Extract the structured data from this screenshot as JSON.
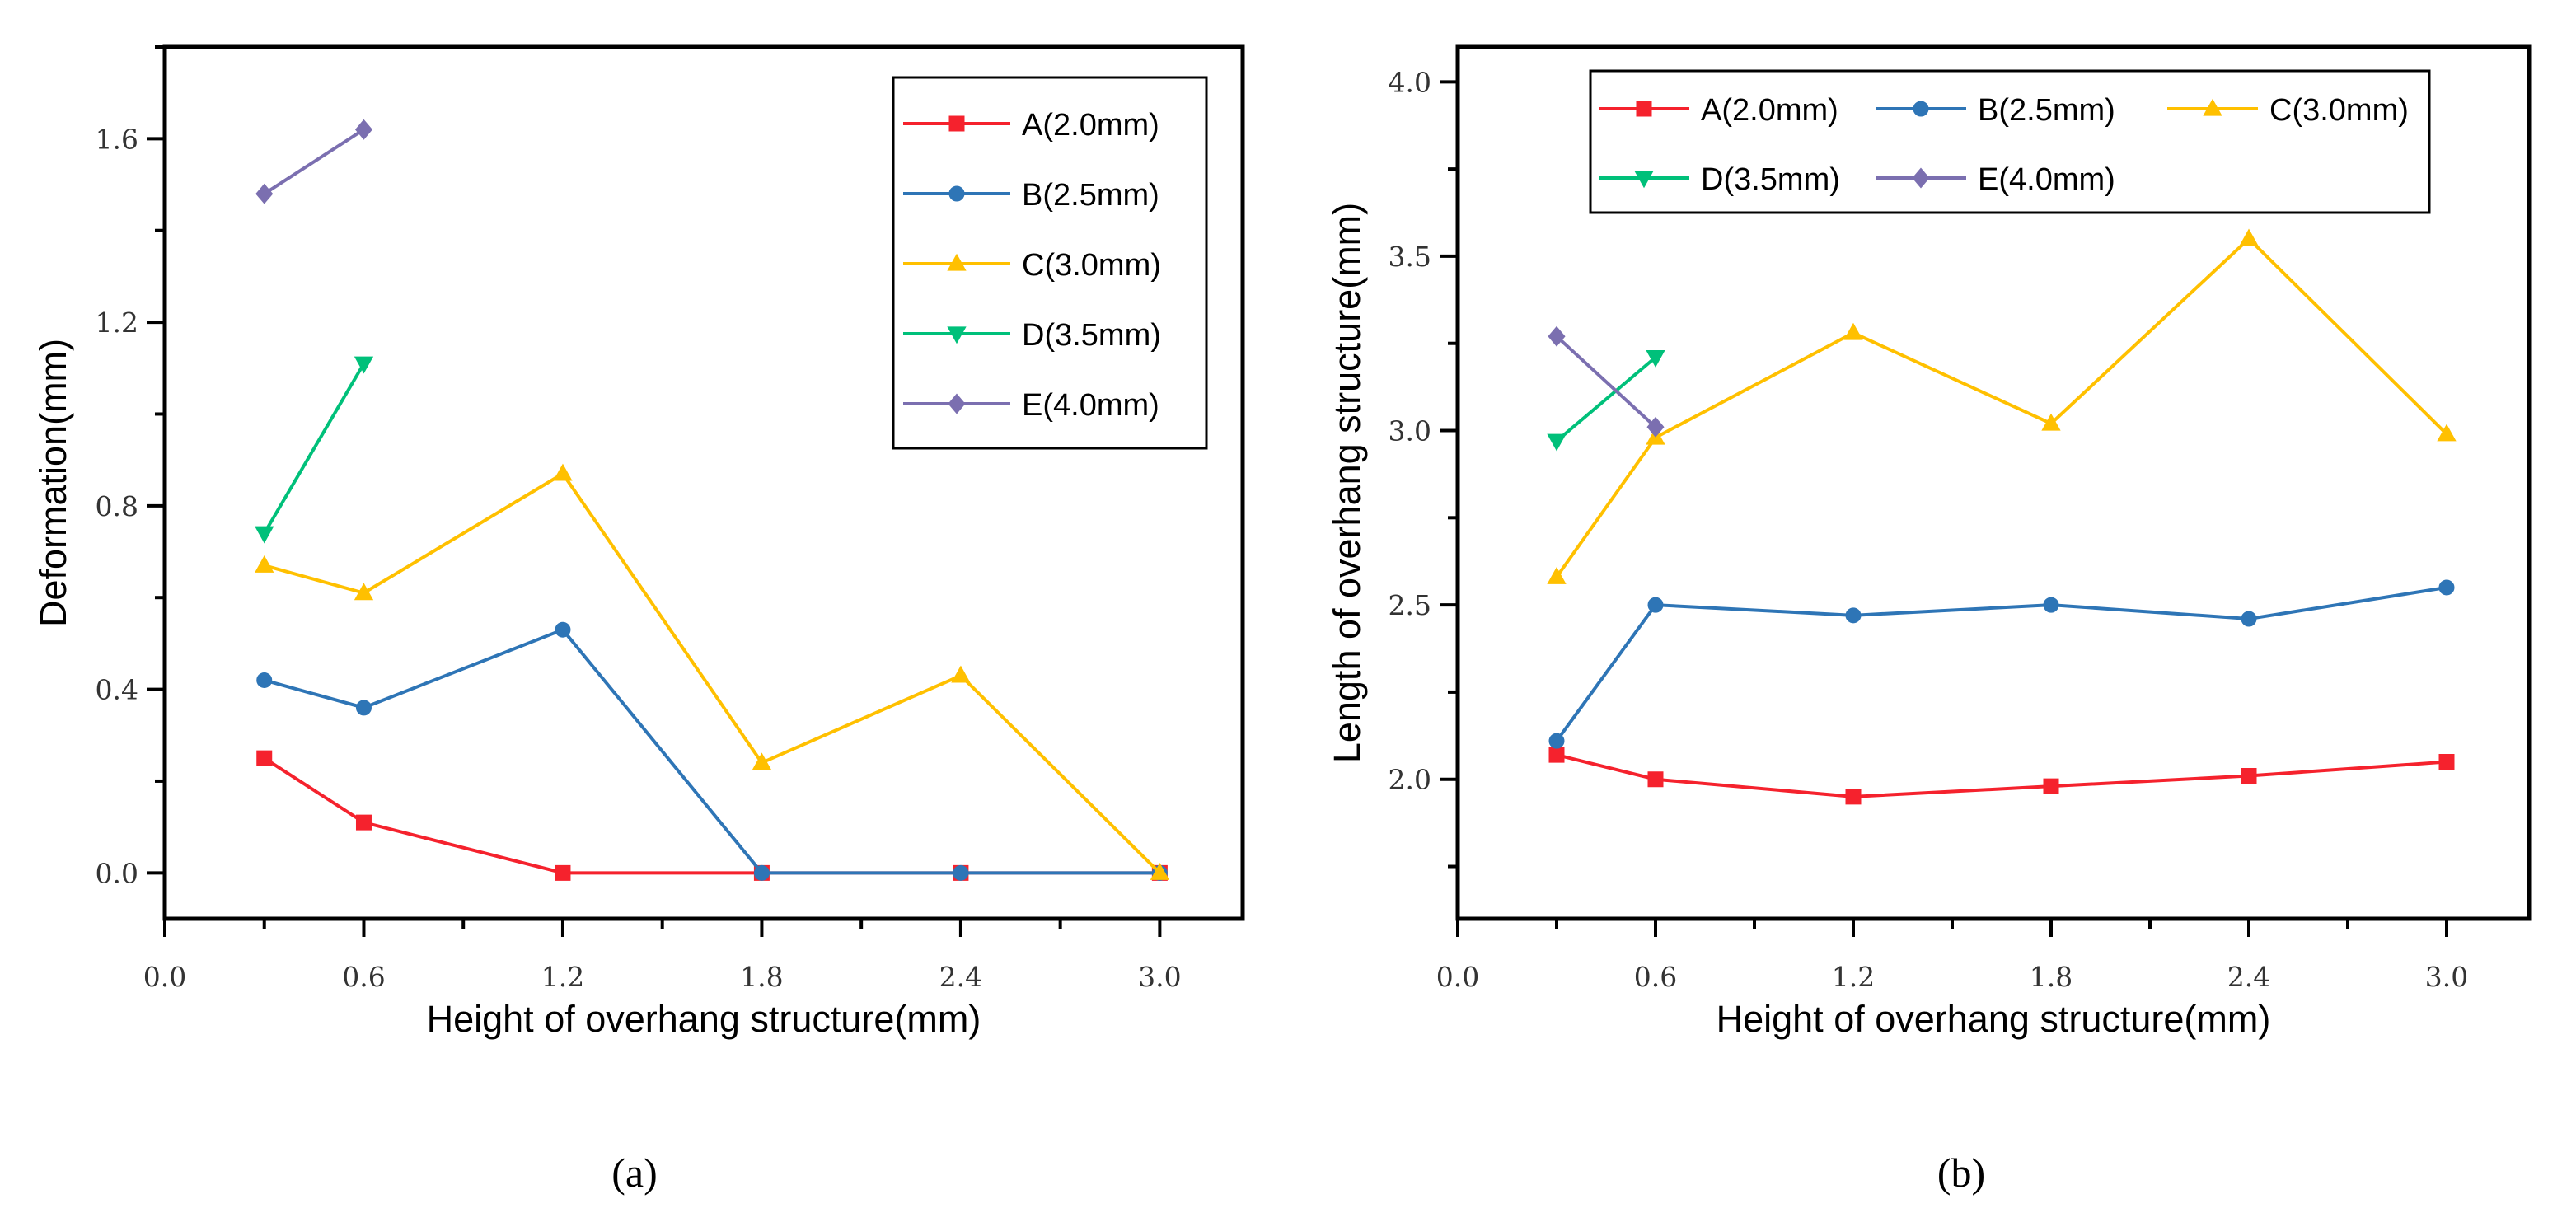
{
  "figure": {
    "captions": [
      "(a)",
      "(b)"
    ]
  },
  "colors": {
    "A": "#f5222d",
    "B": "#2e75b6",
    "C": "#ffc000",
    "D": "#00c07a",
    "E": "#7b6fb0"
  },
  "chart_data": [
    {
      "type": "line",
      "caption": "(a)",
      "title": "",
      "xlabel": "Height of overhang structure(mm)",
      "ylabel": "Deformation(mm)",
      "xlim": [
        0.0,
        3.25
      ],
      "ylim": [
        -0.1,
        1.8
      ],
      "xticks": [
        0.0,
        0.6,
        1.2,
        1.8,
        2.4,
        3.0
      ],
      "xtick_labels": [
        "0.0",
        "0.6",
        "1.2",
        "1.8",
        "2.4",
        "3.0"
      ],
      "yticks": [
        0.0,
        0.4,
        0.8,
        1.2,
        1.6
      ],
      "ytick_labels": [
        "0.0",
        "0.4",
        "0.8",
        "1.2",
        "1.6"
      ],
      "legend_position": "top-right",
      "legend_layout": "column",
      "series": [
        {
          "name": "A(2.0mm)",
          "key": "A",
          "marker": "square",
          "x": [
            0.3,
            0.6,
            1.2,
            1.8,
            2.4,
            3.0
          ],
          "y": [
            0.25,
            0.11,
            0.0,
            0.0,
            0.0,
            0.0
          ]
        },
        {
          "name": "B(2.5mm)",
          "key": "B",
          "marker": "circle",
          "x": [
            0.3,
            0.6,
            1.2,
            1.8,
            2.4,
            3.0
          ],
          "y": [
            0.42,
            0.36,
            0.53,
            0.0,
            0.0,
            0.0
          ]
        },
        {
          "name": "C(3.0mm)",
          "key": "C",
          "marker": "triangle-up",
          "x": [
            0.3,
            0.6,
            1.2,
            1.8,
            2.4,
            3.0
          ],
          "y": [
            0.67,
            0.61,
            0.87,
            0.24,
            0.43,
            0.0
          ]
        },
        {
          "name": "D(3.5mm)",
          "key": "D",
          "marker": "triangle-down",
          "x": [
            0.3,
            0.6
          ],
          "y": [
            0.74,
            1.11
          ]
        },
        {
          "name": "E(4.0mm)",
          "key": "E",
          "marker": "diamond",
          "x": [
            0.3,
            0.6
          ],
          "y": [
            1.48,
            1.62
          ]
        }
      ]
    },
    {
      "type": "line",
      "caption": "(b)",
      "title": "",
      "xlabel": "Height of overhang structure(mm)",
      "ylabel": "Length of overhang structure(mm)",
      "xlim": [
        0.0,
        3.25
      ],
      "ylim": [
        1.6,
        4.1
      ],
      "xticks": [
        0.0,
        0.6,
        1.2,
        1.8,
        2.4,
        3.0
      ],
      "xtick_labels": [
        "0.0",
        "0.6",
        "1.2",
        "1.8",
        "2.4",
        "3.0"
      ],
      "yticks": [
        2.0,
        2.5,
        3.0,
        3.5,
        4.0
      ],
      "ytick_labels": [
        "2.0",
        "2.5",
        "3.0",
        "3.5",
        "4.0"
      ],
      "legend_position": "top",
      "legend_layout": "rows",
      "legend_rows": [
        [
          0,
          1,
          2
        ],
        [
          3,
          4
        ]
      ],
      "series": [
        {
          "name": "A(2.0mm)",
          "key": "A",
          "marker": "square",
          "x": [
            0.3,
            0.6,
            1.2,
            1.8,
            2.4,
            3.0
          ],
          "y": [
            2.07,
            2.0,
            1.95,
            1.98,
            2.01,
            2.05
          ]
        },
        {
          "name": "B(2.5mm)",
          "key": "B",
          "marker": "circle",
          "x": [
            0.3,
            0.6,
            1.2,
            1.8,
            2.4,
            3.0
          ],
          "y": [
            2.11,
            2.5,
            2.47,
            2.5,
            2.46,
            2.55
          ]
        },
        {
          "name": "C(3.0mm)",
          "key": "C",
          "marker": "triangle-up",
          "x": [
            0.3,
            0.6,
            1.2,
            1.8,
            2.4,
            3.0
          ],
          "y": [
            2.58,
            2.98,
            3.28,
            3.02,
            3.55,
            2.99
          ]
        },
        {
          "name": "D(3.5mm)",
          "key": "D",
          "marker": "triangle-down",
          "x": [
            0.3,
            0.6
          ],
          "y": [
            2.97,
            3.21
          ]
        },
        {
          "name": "E(4.0mm)",
          "key": "E",
          "marker": "diamond",
          "x": [
            0.3,
            0.6
          ],
          "y": [
            3.27,
            3.01
          ]
        }
      ]
    }
  ]
}
